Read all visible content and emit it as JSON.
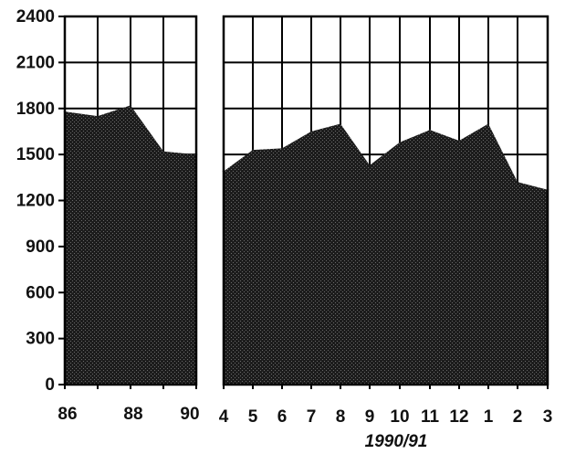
{
  "chart_data": [
    {
      "type": "area",
      "title": "",
      "ylabel": "",
      "xlabel": "",
      "x": [
        86,
        87,
        88,
        89,
        90
      ],
      "x_ticks": [
        "86",
        "88",
        "90"
      ],
      "values": [
        1780,
        1750,
        1820,
        1520,
        1500
      ],
      "ylim": [
        0,
        2400
      ],
      "y_ticks": [
        "0",
        "300",
        "600",
        "900",
        "1200",
        "1500",
        "1800",
        "2100",
        "2400"
      ],
      "grid": true
    },
    {
      "type": "area",
      "title": "",
      "ylabel": "",
      "xlabel": "1990/91",
      "categories": [
        "4",
        "5",
        "6",
        "7",
        "8",
        "9",
        "10",
        "11",
        "12",
        "1",
        "2",
        "3"
      ],
      "values": [
        1390,
        1530,
        1540,
        1650,
        1700,
        1430,
        1580,
        1660,
        1590,
        1700,
        1320,
        1270
      ],
      "ylim": [
        0,
        2400
      ],
      "grid": true
    }
  ],
  "colors": {
    "fill": "#1c1c1c",
    "grid": "#000000",
    "background": "#ffffff"
  }
}
